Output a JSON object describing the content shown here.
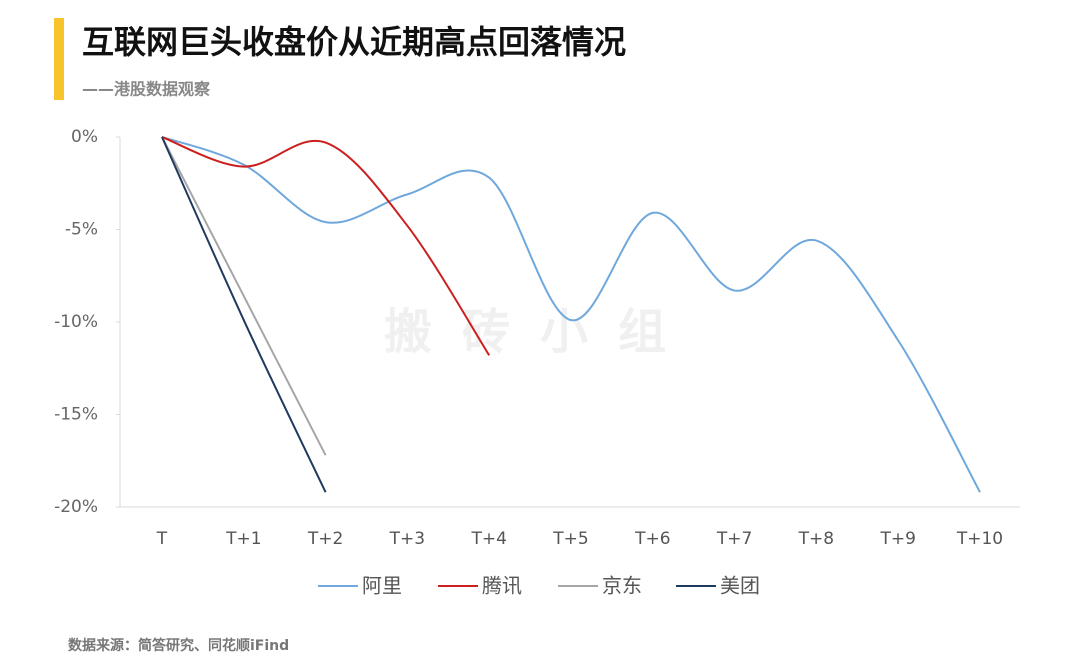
{
  "chart_data": {
    "type": "line",
    "title": "互联网巨头收盘价从近期高点回落情况",
    "subtitle": "——港股数据观察",
    "watermark": "搬砖小组",
    "source": "数据来源：简答研究、同花顺iFind",
    "categories": [
      "T",
      "T+1",
      "T+2",
      "T+3",
      "T+4",
      "T+5",
      "T+6",
      "T+7",
      "T+8",
      "T+9",
      "T+10"
    ],
    "ylim": [
      0,
      -20
    ],
    "yticks": [
      {
        "value": 0,
        "label": "0%"
      },
      {
        "value": -5,
        "label": "-5%"
      },
      {
        "value": -10,
        "label": "-10%"
      },
      {
        "value": -15,
        "label": "-15%"
      },
      {
        "value": -20,
        "label": "-20%"
      }
    ],
    "series": [
      {
        "name": "阿里",
        "color": "#6fa8dc",
        "values": [
          0,
          -1.5,
          -4.6,
          -3.1,
          -2.2,
          -9.9,
          -4.1,
          -8.3,
          -5.6,
          -11,
          -19.2
        ]
      },
      {
        "name": "腾讯",
        "color": "#cc1f1f",
        "values": [
          0,
          -1.6,
          -0.3,
          -4.8,
          -11.8,
          null,
          null,
          null,
          null,
          null,
          null
        ]
      },
      {
        "name": "京东",
        "color": "#a6a6a6",
        "values": [
          0,
          -8.6,
          -17.2,
          null,
          null,
          null,
          null,
          null,
          null,
          null,
          null
        ]
      },
      {
        "name": "美团",
        "color": "#1f3a5f",
        "values": [
          0,
          -9.9,
          -19.2,
          null,
          null,
          null,
          null,
          null,
          null,
          null,
          null
        ]
      }
    ]
  }
}
